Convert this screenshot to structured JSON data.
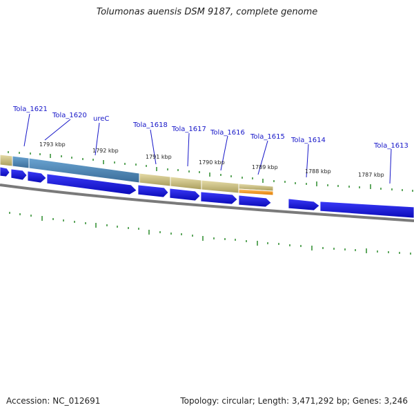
{
  "title": "Tolumonas auensis DSM 9187, complete genome",
  "footer": {
    "accession": "Accession: NC_012691",
    "summary": "Topology: circular; Length: 3,471,292 bp; Genes: 3,246"
  },
  "gene_labels": [
    "Tola_1621",
    "Tola_1620",
    "ureC",
    "Tola_1618",
    "Tola_1617",
    "Tola_1616",
    "Tola_1615",
    "Tola_1614",
    "Tola_1613"
  ],
  "ruler_labels": [
    "1793 kbp",
    "1792 kbp",
    "1791 kbp",
    "1790 kbp",
    "1789 kbp",
    "1788 kbp",
    "1787 kbp"
  ],
  "colors": {
    "arrow": "#1a1ae6",
    "feature_tan": "#c8be82",
    "feature_blue": "#4a86b8",
    "feature_orange": "#f0a020",
    "tick": "#2a8a2a",
    "backbone": "#7a7a7a",
    "label": "#1515c8"
  }
}
